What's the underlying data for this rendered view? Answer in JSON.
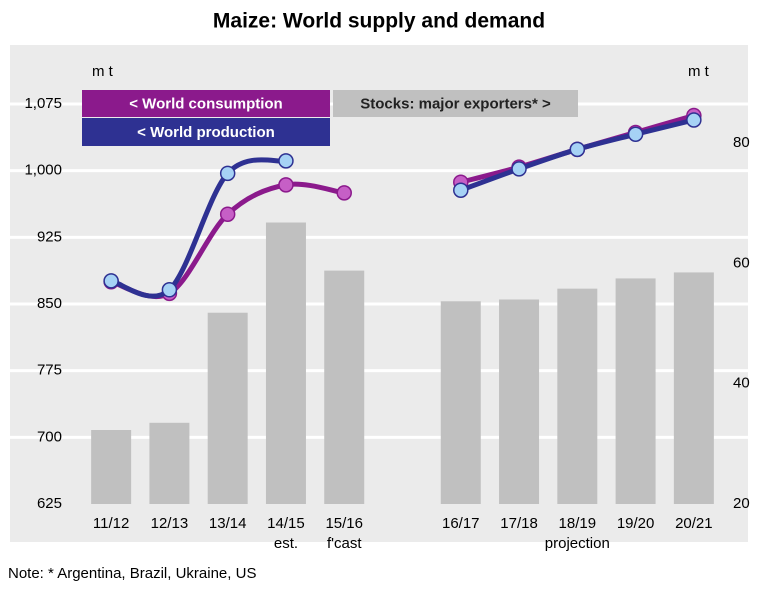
{
  "chart_data": {
    "type": "combo",
    "title": "Maize: World supply and demand",
    "y_unit": "m t",
    "y2_unit": "m t",
    "categories": [
      "11/12",
      "12/13",
      "13/14",
      "14/15",
      "15/16",
      null,
      "16/17",
      "17/18",
      "18/19",
      "19/20",
      "20/21"
    ],
    "category_sublabels": [
      null,
      null,
      null,
      "est.",
      "f'cast",
      null,
      null,
      null,
      null,
      null,
      null
    ],
    "annotations": [
      {
        "text": "projection",
        "category_index": 8
      }
    ],
    "note": "Note: * Argentina, Brazil, Ukraine, US",
    "ylim": [
      625,
      1075
    ],
    "yticks": [
      625,
      700,
      775,
      850,
      925,
      {
        "value": 1000,
        "label": "1,000"
      },
      {
        "value": 1075,
        "label": "1,075"
      }
    ],
    "y2lim": [
      20,
      86.5
    ],
    "y2ticks": [
      20,
      40,
      60,
      80
    ],
    "grid": true,
    "series": [
      {
        "name": "Stocks: major exporters* >",
        "type": "bar",
        "axis": "y2",
        "color": "#c0c0c0",
        "values": [
          32.3,
          33.5,
          51.8,
          66.8,
          58.8,
          null,
          53.7,
          54,
          55.8,
          57.5,
          58.5
        ]
      },
      {
        "name": "< World consumption",
        "type": "line",
        "color": "#8b1a8c",
        "marker_color": "#c65fc6",
        "values": [
          875,
          862,
          951,
          984,
          975,
          null,
          987,
          1004,
          1024,
          1043,
          1062
        ]
      },
      {
        "name": "< World production",
        "type": "line",
        "color": "#2e3192",
        "marker_color": "#a6d2f5",
        "values": [
          876,
          866,
          997,
          1011,
          null,
          null,
          978,
          1002,
          1024,
          1041,
          1057
        ]
      }
    ]
  }
}
